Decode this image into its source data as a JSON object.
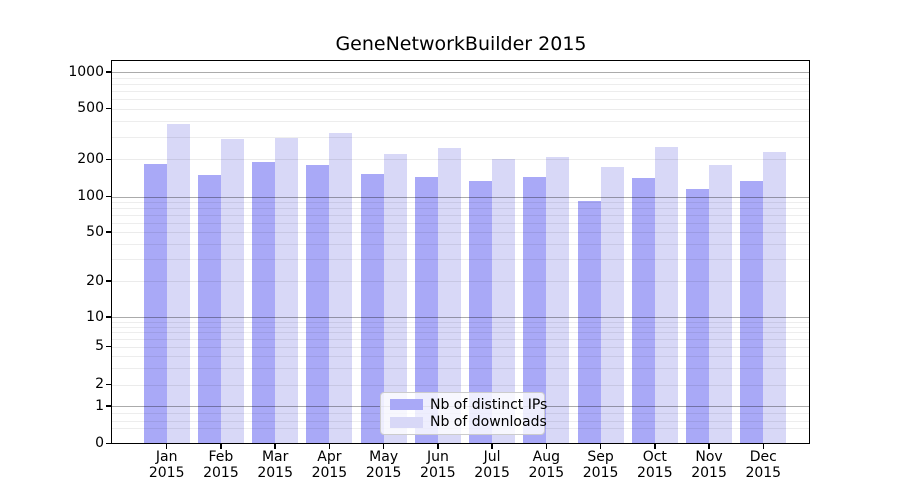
{
  "title": "GeneNetworkBuilder 2015",
  "chart_data": {
    "type": "bar",
    "title": "GeneNetworkBuilder 2015",
    "categories": [
      "Jan",
      "Feb",
      "Mar",
      "Apr",
      "May",
      "Jun",
      "Jul",
      "Aug",
      "Sep",
      "Oct",
      "Nov",
      "Dec"
    ],
    "year": "2015",
    "series": [
      {
        "name": "Nb of distinct IPs",
        "color": "#a9a9f7",
        "values": [
          185,
          150,
          190,
          180,
          152,
          143,
          135,
          143,
          92,
          141,
          116,
          135
        ]
      },
      {
        "name": "Nb of downloads",
        "color": "#d8d8f7",
        "values": [
          380,
          290,
          295,
          320,
          220,
          245,
          200,
          210,
          175,
          250,
          180,
          230
        ]
      }
    ],
    "yticks": [
      1000,
      500,
      200,
      100,
      50,
      20,
      10,
      5,
      2,
      1,
      0
    ],
    "yscale": "log-like (compressed toward 0 at baseline)",
    "ylim": [
      0,
      1235
    ],
    "grid": true,
    "legend_position": "lower center"
  },
  "colors": {
    "bar_distinct_ips": "#a9a9f7",
    "bar_downloads": "#d8d8f7",
    "background": "#ffffff",
    "spine": "#000000",
    "grid_major": "#aaaaaa",
    "grid_minor": "#ebebeb",
    "legend_border": "#cccccc"
  }
}
